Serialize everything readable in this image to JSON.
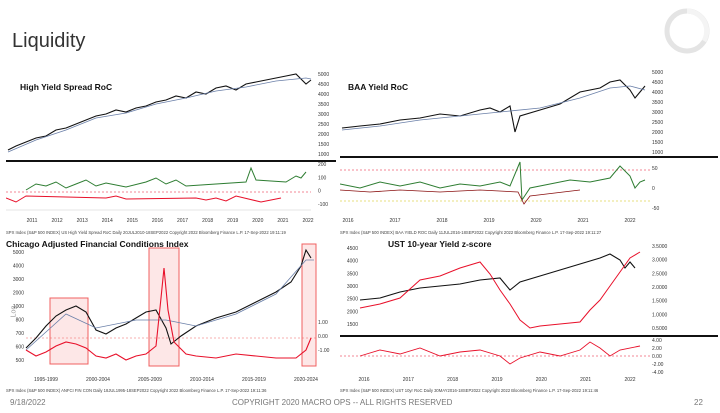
{
  "slide": {
    "title": "Liquidity",
    "footer_date": "9/18/2022",
    "footer_copyright": "COPYRIGHT 2020 MACRO OPS -- ALL RIGHTS RESERVED",
    "page_number": "22"
  },
  "colors": {
    "price": "#111111",
    "ma": "#6a7fa8",
    "pos": "#2e7d32",
    "neg": "#e8102a",
    "accent": "#c8102e"
  },
  "charts": [
    {
      "title": "High Yield Spread RoC",
      "y_ticks": [
        "5000",
        "4500",
        "4000",
        "3500",
        "3000",
        "2500",
        "2000",
        "1500",
        "1000"
      ],
      "lower_ticks": [
        "200",
        "100",
        "0",
        "-100"
      ],
      "x_ticks": [
        "2011",
        "2012",
        "2013",
        "2014",
        "2015",
        "2016",
        "2017",
        "2018",
        "2019",
        "2020",
        "2021",
        "2022"
      ],
      "source": "SPX Index (S&P 500 INDEX) US High Yield Spread RoC Daily 20JUL2010-18SEP2022 Copyright 2022 Bloomberg Finance L.P. 17-Sep-2022 19:11:19"
    },
    {
      "title": "BAA Yield RoC",
      "y_ticks": [
        "5000",
        "4500",
        "4000",
        "3500",
        "3000",
        "2500",
        "2000",
        "1500",
        "1000"
      ],
      "lower_ticks": [
        "50",
        "0",
        "-50"
      ],
      "x_ticks": [
        "2016",
        "2017",
        "2018",
        "2019",
        "2020",
        "2021",
        "2022"
      ],
      "source": "SPX Index (S&P 500 INDEX) BAA YIELD ROC Daily 11JUL2016-18SEP2022 Copyright 2022 Bloomberg Finance L.P. 17-Sep-2022 19:11:27"
    },
    {
      "title": "Chicago Adjusted Financial Conditions Index",
      "log_label": "Log",
      "y_ticks": [
        "5000",
        "4000",
        "3000",
        "2000",
        "1000",
        "800",
        "700",
        "600",
        "500"
      ],
      "right_ticks": [
        "1.00",
        "0.00",
        "-1.00"
      ],
      "x_ticks": [
        "1995-1999",
        "2000-2004",
        "2005-2009",
        "2010-2014",
        "2015-2019",
        "2020-2024"
      ],
      "source": "SPX Index (S&P 500 INDEX) ANFCI FIN CON Daily 18JUL1995-18SEP2022 Copyright 2022 Bloomberg Finance L.P. 17-Sep-2022 19:11:36"
    },
    {
      "title": "UST 10-year Yield z-score",
      "y_ticks": [
        "4500",
        "4000",
        "3500",
        "3000",
        "2500",
        "2000",
        "1500"
      ],
      "right_ticks": [
        "3.5000",
        "3.0000",
        "2.5000",
        "2.0000",
        "1.5000",
        "1.0000",
        "0.5000"
      ],
      "lower_ticks": [
        "4.00",
        "2.00",
        "0.00",
        "-2.00",
        "-4.00"
      ],
      "x_ticks": [
        "2016",
        "2017",
        "2018",
        "2019",
        "2020",
        "2021",
        "2022"
      ],
      "source": "SPX Index (S&P 500 INDEX) UST 10yr RoC Daily 30MAY2016-18SEP2022 Copyright 2022 Bloomberg Finance L.P. 17-Sep-2022 19:11:46"
    }
  ]
}
